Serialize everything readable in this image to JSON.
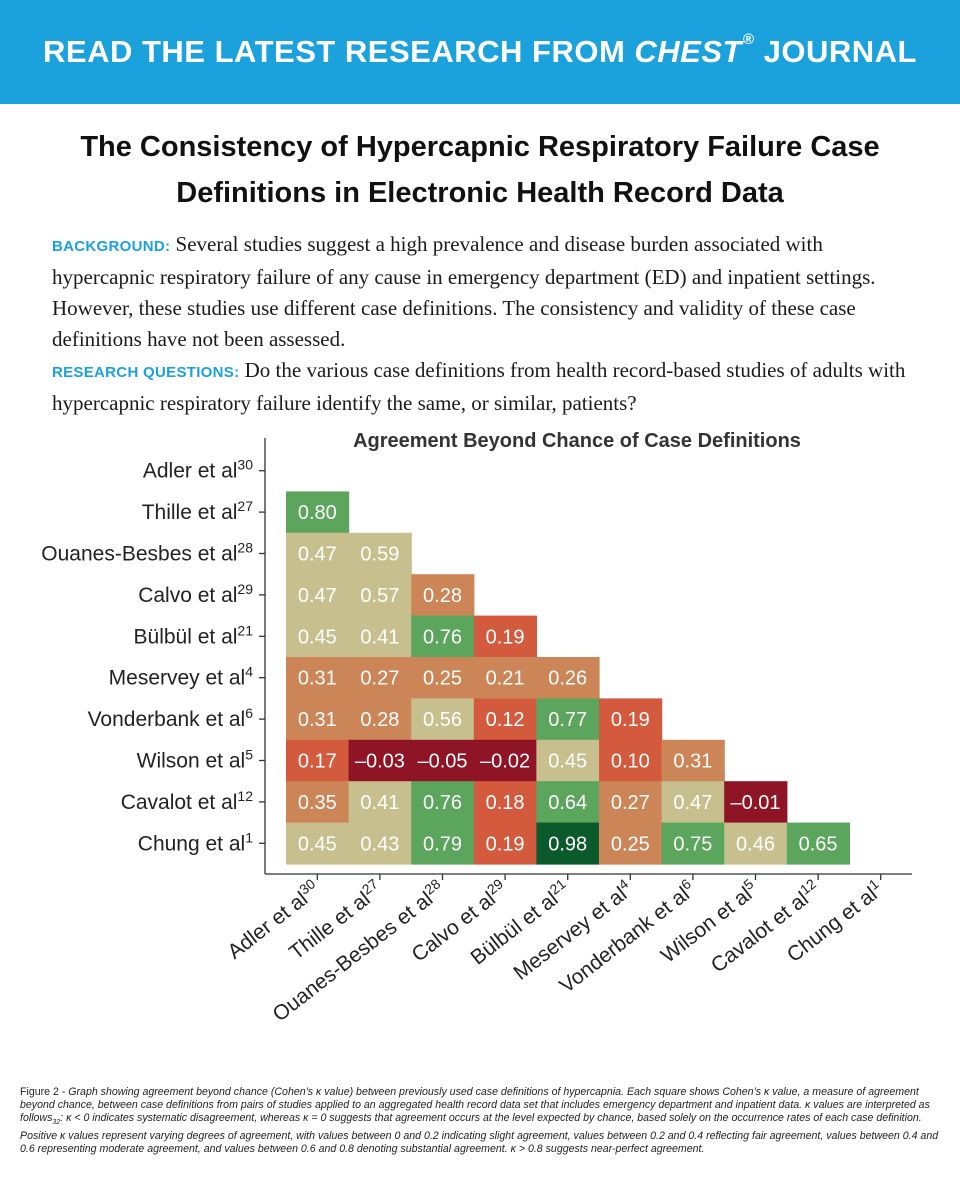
{
  "banner": {
    "part1": "READ THE LATEST RESEARCH FROM ",
    "journal": "CHEST",
    "reg": "®",
    "part2": " JOURNAL",
    "background_color": "#1ba2dc"
  },
  "article_title": "The Consistency of Hypercapnic Respiratory Failure Case Definitions in Electronic Health Record Data",
  "background": {
    "label": "BACKGROUND:",
    "text": "Several studies suggest a high prevalence and disease burden associated with hypercapnic respiratory failure of any cause in emergency department (ED) and inpatient settings. However, these studies use different case definitions. The consistency and validity of these case definitions have not been assessed."
  },
  "research_questions": {
    "label": "RESEARCH QUESTIONS:",
    "text": "Do the various case definitions from health record-based studies of adults with hypercapnic respiratory failure identify the same, or similar, patients?"
  },
  "chart_data": {
    "type": "heatmap",
    "title": "Agreement Beyond Chance of Case Definitions",
    "labels": [
      {
        "name": "Adler et al",
        "ref": "30"
      },
      {
        "name": "Thille et al",
        "ref": "27"
      },
      {
        "name": "Ouanes-Besbes et al",
        "ref": "28"
      },
      {
        "name": "Calvo et al",
        "ref": "29"
      },
      {
        "name": "Bülbül et al",
        "ref": "21"
      },
      {
        "name": "Meservey et al",
        "ref": "4"
      },
      {
        "name": "Vonderbank et al",
        "ref": "6"
      },
      {
        "name": "Wilson et al",
        "ref": "5"
      },
      {
        "name": "Cavalot et al",
        "ref": "12"
      },
      {
        "name": "Chung et al",
        "ref": "1"
      }
    ],
    "matrix": [
      [],
      [
        "0.80"
      ],
      [
        "0.47",
        "0.59"
      ],
      [
        "0.47",
        "0.57",
        "0.28"
      ],
      [
        "0.45",
        "0.41",
        "0.76",
        "0.19"
      ],
      [
        "0.31",
        "0.27",
        "0.25",
        "0.21",
        "0.26"
      ],
      [
        "0.31",
        "0.28",
        "0.56",
        "0.12",
        "0.77",
        "0.19"
      ],
      [
        "0.17",
        "–0.03",
        "–0.05",
        "–0.02",
        "0.45",
        "0.10",
        "0.31"
      ],
      [
        "0.35",
        "0.41",
        "0.76",
        "0.18",
        "0.64",
        "0.27",
        "0.47",
        "–0.01"
      ],
      [
        "0.45",
        "0.43",
        "0.79",
        "0.19",
        "0.98",
        "0.25",
        "0.75",
        "0.46",
        "0.65"
      ]
    ],
    "color_scale": {
      "negative": "#8e1426",
      "low": "#d45a3e",
      "fair": "#cc8557",
      "moderate": "#c7c08e",
      "substantial": "#5ba55c",
      "near_perfect": "#0b5a2c"
    }
  },
  "caption": {
    "figure_label": "Figure 2 - ",
    "text_a": "Graph showing agreement beyond chance (Cohen’s κ value) between previously used case definitions of hypercapnia. Each square shows Cohen’s κ value, a measure of agreement beyond chance, between case definitions from pairs of studies applied to an aggregated health record data set that includes emergency department and inpatient data. κ values are interpreted as follows",
    "ref": "32",
    "text_b": ": κ < 0 indicates systematic disagreement, whereas κ = 0 suggests that agreement occurs at the level expected by chance, based solely on the occurrence rates of each case definition. Positive κ values represent varying degrees of agreement, with values between 0 and 0.2 indicating slight agreement, values between 0.2 and 0.4 reflecting fair agreement, values between 0.4 and 0.6 representing moderate agreement, and values between 0.6 and 0.8 denoting substantial agreement. κ > 0.8 suggests near-perfect agreement."
  }
}
